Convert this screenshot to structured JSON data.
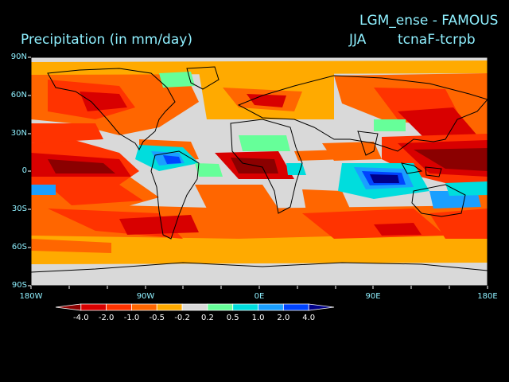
{
  "header": {
    "run_title": "LGM_ense - FAMOUS",
    "variable_title": "Precipitation (in mm/day)",
    "season": "JJA",
    "experiment": "tcnaF-tcrpb"
  },
  "map": {
    "projection": "cylindrical equidistant",
    "lon_range": [
      -180,
      180
    ],
    "lat_range": [
      -90,
      90
    ],
    "lat_ticks": [
      {
        "lat": 90,
        "label": "90N"
      },
      {
        "lat": 60,
        "label": "60N"
      },
      {
        "lat": 30,
        "label": "30N"
      },
      {
        "lat": 0,
        "label": "0"
      },
      {
        "lat": -30,
        "label": "30S"
      },
      {
        "lat": -60,
        "label": "60S"
      },
      {
        "lat": -90,
        "label": "90S"
      }
    ],
    "lon_ticks": [
      {
        "lon": -180,
        "label": "180W"
      },
      {
        "lon": -90,
        "label": "90W"
      },
      {
        "lon": 0,
        "label": "0E"
      },
      {
        "lon": 90,
        "label": "90E"
      },
      {
        "lon": 180,
        "label": "180E"
      }
    ]
  },
  "colorbar": {
    "labels": [
      "-4.0",
      "-2.0",
      "-1.0",
      "-0.5",
      "-0.2",
      "0.2",
      "0.5",
      "1.0",
      "2.0",
      "4.0"
    ],
    "colors": [
      "#8b0000",
      "#d80000",
      "#ff3300",
      "#ff6600",
      "#ffaa00",
      "#d9d9d9",
      "#66ff99",
      "#00dddd",
      "#1a9fff",
      "#0044ff",
      "#000088"
    ]
  },
  "fields": {
    "background_color": "#d9d9d9",
    "coastline_color": "#000000"
  }
}
